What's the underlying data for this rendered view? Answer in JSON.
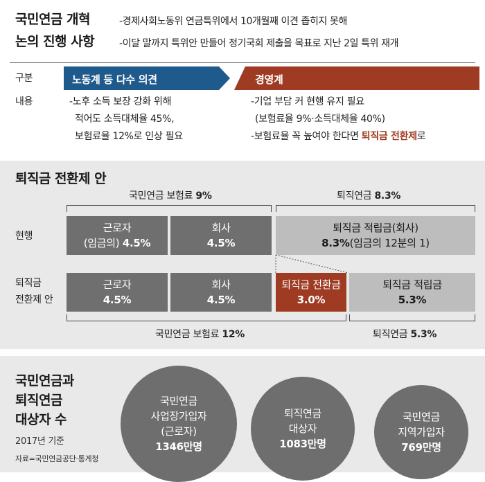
{
  "reform": {
    "title_line1": "국민연금 개혁",
    "title_line2": "논의 진행 사항",
    "note1": "-경제사회노동위 연금특위에서 10개월째 이견 좁히지 못해",
    "note2": "-이달 말까지 특위안 만들어 정기국회 제출을 목표로 지난 2일 특위 재개",
    "col_header": "구분",
    "labor_header": "노동계 등 다수 의견",
    "biz_header": "경영계",
    "row_label": "내용",
    "labor_lines": [
      "-노후 소득 보장 강화 위해",
      "적어도 소득대체율 45%,",
      "보험료율 12%로 인상 필요"
    ],
    "biz_line1": "-기업 부담 커 현행 유지 필요",
    "biz_line2": "(보험료율 9%·소득대체율 40%)",
    "biz_line3_pre": "-보험료율 꼭 높여야 한다면 ",
    "biz_line3_em": "퇴직금 전환제",
    "biz_line3_post": "로",
    "colors": {
      "labor": "#1f5a8c",
      "biz": "#9e3b22"
    }
  },
  "plan": {
    "title": "퇴직금 전환제 안",
    "top_left": {
      "label": "국민연금 보험료 ",
      "value": "9%"
    },
    "top_right": {
      "label": "퇴직연금 ",
      "value": "8.3%"
    },
    "row1_label": "현행",
    "row1": [
      {
        "line1": "근로자",
        "line2_pre": "(임금의) ",
        "line2_val": "4.5%"
      },
      {
        "line1": "회사",
        "line2_pre": "",
        "line2_val": "4.5%"
      },
      {
        "line1": "퇴직금 적립금(회사)",
        "line2_pre": "",
        "line2_val": "8.3%",
        "line2_post": "(임금의 12분의 1)"
      }
    ],
    "row2_label_line1": "퇴직금",
    "row2_label_line2": "전환제 안",
    "row2": [
      {
        "line1": "근로자",
        "line2_val": "4.5%"
      },
      {
        "line1": "회사",
        "line2_val": "4.5%"
      },
      {
        "line1": "퇴직금 전환금",
        "line2_val": "3.0%"
      },
      {
        "line1": "퇴직금 적립금",
        "line2_val": "5.3%"
      }
    ],
    "bottom_left": {
      "label": "국민연금 보험료 ",
      "value": "12%"
    },
    "bottom_right": {
      "label": "퇴직연금 ",
      "value": "5.3%"
    }
  },
  "members": {
    "title_line1": "국민연금과",
    "title_line2": "퇴직연금",
    "title_line3": "대상자 수",
    "basis": "2017년 기준",
    "source": "자료=국민연금공단·통계청",
    "circles": [
      {
        "lines": [
          "국민연금",
          "사업장가입자",
          "(근로자)"
        ],
        "value": "1346만명"
      },
      {
        "lines": [
          "퇴직연금",
          "대상자"
        ],
        "value": "1083만명"
      },
      {
        "lines": [
          "국민연금",
          "지역가입자"
        ],
        "value": "769만명"
      }
    ]
  }
}
